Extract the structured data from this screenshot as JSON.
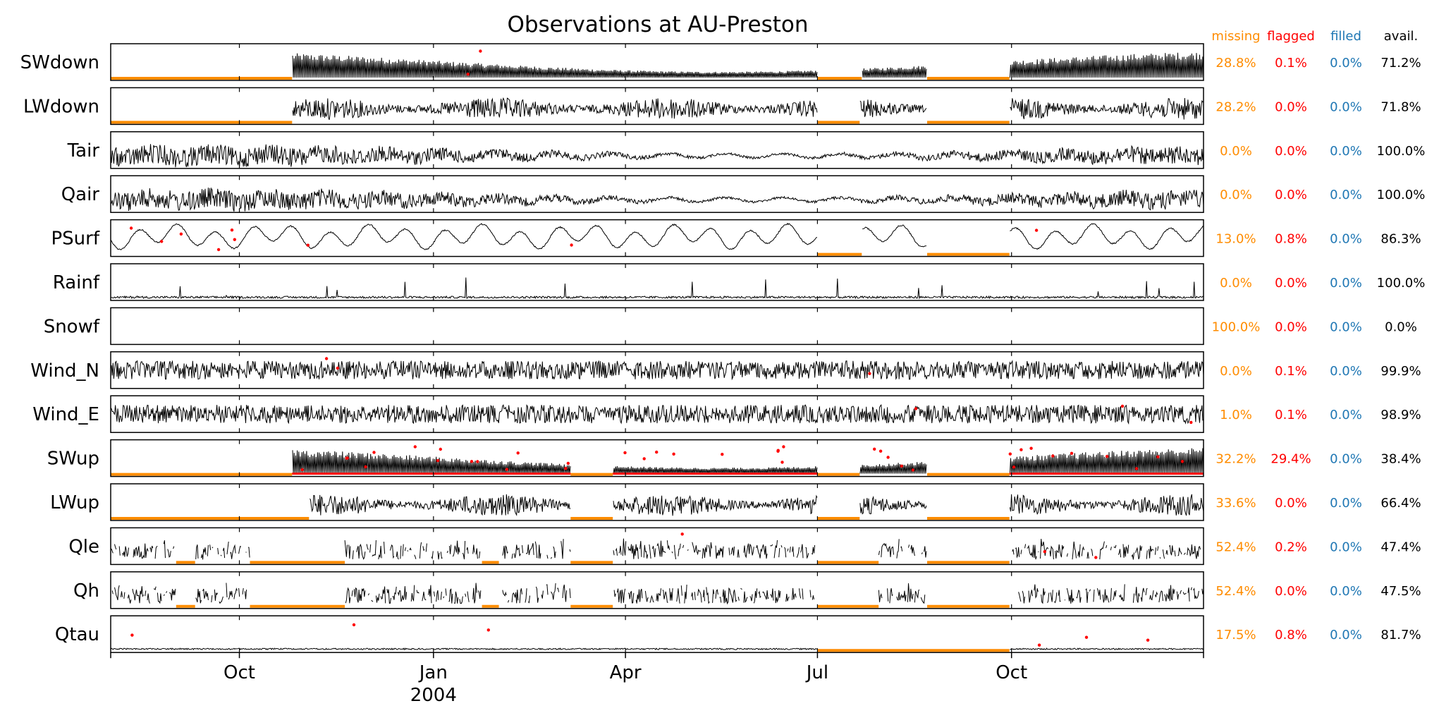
{
  "chart_data": {
    "type": "line",
    "title": "Observations at AU-Preston",
    "x_range": [
      "2003-08-01",
      "2004-12-31"
    ],
    "x_ticks": [
      {
        "date": "2003-10-01",
        "label": "Oct",
        "sublabel": ""
      },
      {
        "date": "2004-01-01",
        "label": "Jan",
        "sublabel": "2004"
      },
      {
        "date": "2004-04-01",
        "label": "Apr",
        "sublabel": ""
      },
      {
        "date": "2004-07-01",
        "label": "Jul",
        "sublabel": ""
      },
      {
        "date": "2004-10-01",
        "label": "Oct",
        "sublabel": ""
      }
    ],
    "stat_headers": {
      "missing": "missing",
      "flagged": "flagged",
      "filled": "filled",
      "avail": "avail."
    },
    "colors": {
      "line": "#000000",
      "missing": "#ff8c00",
      "flagged": "#ff0000",
      "filled": "#1f77b4",
      "avail": "#000000"
    },
    "series": [
      {
        "name": "SWdown",
        "missing": "28.8%",
        "flagged": "0.1%",
        "filled": "0.0%",
        "avail": "71.2%",
        "style": "diurnal",
        "gaps": [
          [
            "2003-08-01",
            "2003-10-26"
          ],
          [
            "2004-07-01",
            "2004-07-22"
          ],
          [
            "2004-08-22",
            "2004-09-30"
          ]
        ]
      },
      {
        "name": "LWdown",
        "missing": "28.2%",
        "flagged": "0.0%",
        "filled": "0.0%",
        "avail": "71.8%",
        "style": "band",
        "gaps": [
          [
            "2003-08-01",
            "2003-10-26"
          ],
          [
            "2004-07-01",
            "2004-07-21"
          ],
          [
            "2004-08-22",
            "2004-09-30"
          ]
        ]
      },
      {
        "name": "Tair",
        "missing": "0.0%",
        "flagged": "0.0%",
        "filled": "0.0%",
        "avail": "100.0%",
        "style": "noise",
        "gaps": []
      },
      {
        "name": "Qair",
        "missing": "0.0%",
        "flagged": "0.0%",
        "filled": "0.0%",
        "avail": "100.0%",
        "style": "noise",
        "gaps": []
      },
      {
        "name": "PSurf",
        "missing": "13.0%",
        "flagged": "0.8%",
        "filled": "0.0%",
        "avail": "86.3%",
        "style": "smooth",
        "gaps": [
          [
            "2004-07-01",
            "2004-07-22"
          ],
          [
            "2004-08-22",
            "2004-09-30"
          ]
        ]
      },
      {
        "name": "Rainf",
        "missing": "0.0%",
        "flagged": "0.0%",
        "filled": "0.0%",
        "avail": "100.0%",
        "style": "spikes",
        "gaps": []
      },
      {
        "name": "Snowf",
        "missing": "100.0%",
        "flagged": "0.0%",
        "filled": "0.0%",
        "avail": "0.0%",
        "style": "none",
        "gaps": []
      },
      {
        "name": "Wind_N",
        "missing": "0.0%",
        "flagged": "0.1%",
        "filled": "0.0%",
        "avail": "99.9%",
        "style": "noise",
        "gaps": []
      },
      {
        "name": "Wind_E",
        "missing": "1.0%",
        "flagged": "0.1%",
        "filled": "0.0%",
        "avail": "98.9%",
        "style": "noise",
        "gaps": []
      },
      {
        "name": "SWup",
        "missing": "32.2%",
        "flagged": "29.4%",
        "filled": "0.0%",
        "avail": "38.4%",
        "style": "diurnal",
        "gaps": [
          [
            "2003-08-01",
            "2003-10-26"
          ],
          [
            "2004-03-06",
            "2004-03-26"
          ],
          [
            "2004-07-01",
            "2004-07-21"
          ],
          [
            "2004-08-22",
            "2004-09-30"
          ]
        ]
      },
      {
        "name": "LWup",
        "missing": "33.6%",
        "flagged": "0.0%",
        "filled": "0.0%",
        "avail": "66.4%",
        "style": "band",
        "gaps": [
          [
            "2003-08-01",
            "2003-11-03"
          ],
          [
            "2004-03-06",
            "2004-03-26"
          ],
          [
            "2004-07-01",
            "2004-07-21"
          ],
          [
            "2004-08-22",
            "2004-09-30"
          ]
        ]
      },
      {
        "name": "Qle",
        "missing": "52.4%",
        "flagged": "0.2%",
        "filled": "0.0%",
        "avail": "47.4%",
        "style": "sparse",
        "gaps": [
          [
            "2003-09-01",
            "2003-09-10"
          ],
          [
            "2003-10-06",
            "2003-11-20"
          ],
          [
            "2004-01-24",
            "2004-02-01"
          ],
          [
            "2004-03-06",
            "2004-03-26"
          ],
          [
            "2004-07-01",
            "2004-07-30"
          ],
          [
            "2004-08-22",
            "2004-09-30"
          ]
        ]
      },
      {
        "name": "Qh",
        "missing": "52.4%",
        "flagged": "0.0%",
        "filled": "0.0%",
        "avail": "47.5%",
        "style": "sparse",
        "gaps": [
          [
            "2003-09-01",
            "2003-09-10"
          ],
          [
            "2003-10-06",
            "2003-11-20"
          ],
          [
            "2004-01-24",
            "2004-02-01"
          ],
          [
            "2004-03-06",
            "2004-03-26"
          ],
          [
            "2004-07-01",
            "2004-07-30"
          ],
          [
            "2004-08-22",
            "2004-09-30"
          ]
        ]
      },
      {
        "name": "Qtau",
        "missing": "17.5%",
        "flagged": "0.8%",
        "filled": "0.0%",
        "avail": "81.7%",
        "style": "flat",
        "gaps": [
          [
            "2004-07-01",
            "2004-08-22"
          ],
          [
            "2004-08-22",
            "2004-09-30"
          ]
        ]
      }
    ]
  }
}
